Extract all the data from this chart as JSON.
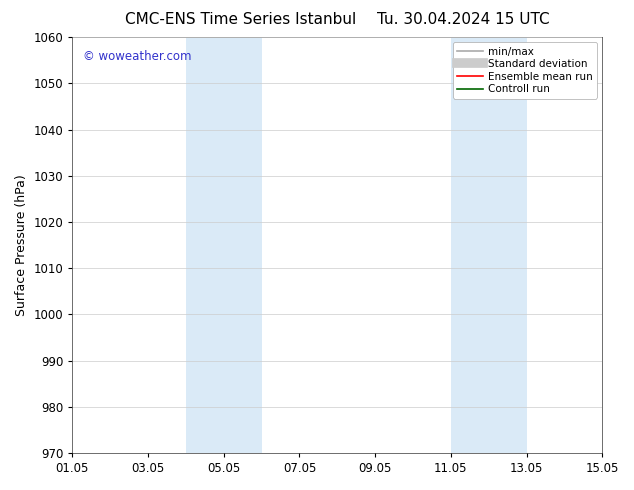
{
  "title_left": "CMC-ENS Time Series Istanbul",
  "title_right": "Tu. 30.04.2024 15 UTC",
  "ylabel": "Surface Pressure (hPa)",
  "ylim": [
    970,
    1060
  ],
  "yticks": [
    970,
    980,
    990,
    1000,
    1010,
    1020,
    1030,
    1040,
    1050,
    1060
  ],
  "xtick_labels": [
    "01.05",
    "03.05",
    "05.05",
    "07.05",
    "09.05",
    "11.05",
    "13.05",
    "15.05"
  ],
  "xtick_positions": [
    1,
    3,
    5,
    7,
    9,
    11,
    13,
    15
  ],
  "xlim": [
    1,
    15
  ],
  "watermark": "© woweather.com",
  "watermark_color": "#3333cc",
  "background_color": "#ffffff",
  "plot_bg_color": "#ffffff",
  "shaded_regions": [
    {
      "x_start": 4.0,
      "x_end": 6.0,
      "color": "#daeaf7"
    },
    {
      "x_start": 11.0,
      "x_end": 13.0,
      "color": "#daeaf7"
    }
  ],
  "legend_entries": [
    {
      "label": "min/max",
      "color": "#aaaaaa",
      "lw": 1.2,
      "style": "solid"
    },
    {
      "label": "Standard deviation",
      "color": "#cccccc",
      "lw": 7,
      "style": "solid"
    },
    {
      "label": "Ensemble mean run",
      "color": "#ff0000",
      "lw": 1.2,
      "style": "solid"
    },
    {
      "label": "Controll run",
      "color": "#006600",
      "lw": 1.2,
      "style": "solid"
    }
  ],
  "title_fontsize": 11,
  "axis_fontsize": 9,
  "tick_fontsize": 8.5,
  "legend_fontsize": 7.5
}
